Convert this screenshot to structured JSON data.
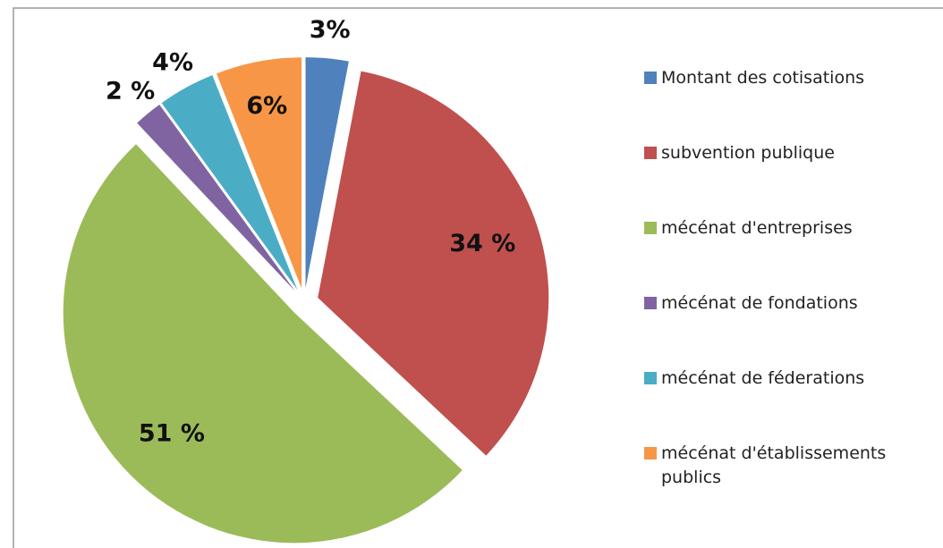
{
  "chart_data": {
    "type": "pie",
    "categories": [
      "Montant des cotisations",
      "subvention publique",
      "mécénat d'entreprises",
      "mécénat de fondations",
      "mécénat de féderations",
      "mécénat d'établissements publics"
    ],
    "values": [
      3,
      34,
      51,
      2,
      4,
      6
    ],
    "value_labels": [
      "3%",
      "34 %",
      "51 %",
      "2 %",
      "4%",
      "6%"
    ],
    "colors": [
      "#4F81BD",
      "#C0504D",
      "#9BBB59",
      "#8064A2",
      "#4BACC6",
      "#F79646"
    ],
    "legend": "right"
  }
}
